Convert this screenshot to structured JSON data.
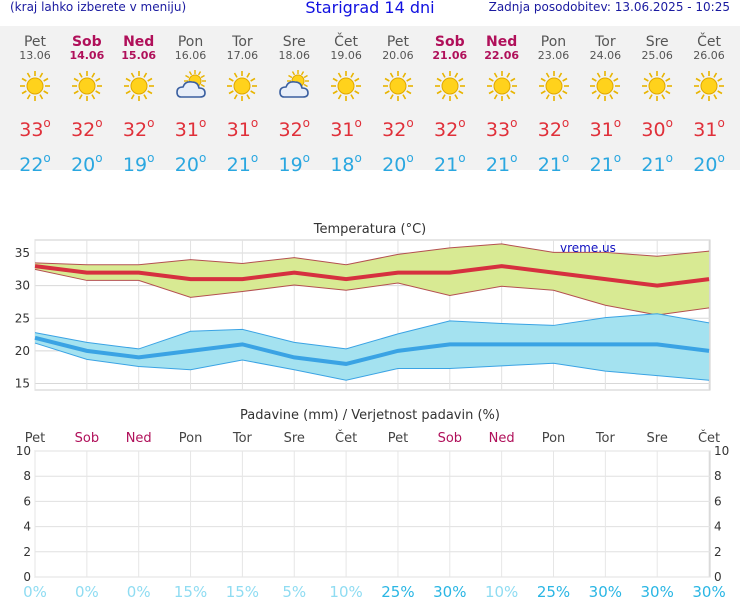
{
  "header": {
    "hint": "(kraj lahko izberete v meniju)",
    "title": "Starigrad 14 dni",
    "updated": "Zadnja posodobitev: 13.06.2025 - 10:25"
  },
  "days": [
    {
      "day": "Pet",
      "date": "13.06",
      "icon": "sun-icon",
      "max": "33",
      "min": "22",
      "weekend": false
    },
    {
      "day": "Sob",
      "date": "14.06",
      "icon": "sun-icon",
      "max": "32",
      "min": "20",
      "weekend": true
    },
    {
      "day": "Ned",
      "date": "15.06",
      "icon": "sun-icon",
      "max": "32",
      "min": "19",
      "weekend": true
    },
    {
      "day": "Pon",
      "date": "16.06",
      "icon": "partly-cloudy-icon",
      "max": "31",
      "min": "20",
      "weekend": false
    },
    {
      "day": "Tor",
      "date": "17.06",
      "icon": "sun-icon",
      "max": "31",
      "min": "21",
      "weekend": false
    },
    {
      "day": "Sre",
      "date": "18.06",
      "icon": "partly-cloudy-icon",
      "max": "32",
      "min": "19",
      "weekend": false
    },
    {
      "day": "Čet",
      "date": "19.06",
      "icon": "sun-icon",
      "max": "31",
      "min": "18",
      "weekend": false
    },
    {
      "day": "Pet",
      "date": "20.06",
      "icon": "sun-icon",
      "max": "32",
      "min": "20",
      "weekend": false
    },
    {
      "day": "Sob",
      "date": "21.06",
      "icon": "sun-icon",
      "max": "32",
      "min": "21",
      "weekend": true
    },
    {
      "day": "Ned",
      "date": "22.06",
      "icon": "sun-icon",
      "max": "33",
      "min": "21",
      "weekend": true
    },
    {
      "day": "Pon",
      "date": "23.06",
      "icon": "sun-icon",
      "max": "32",
      "min": "21",
      "weekend": false
    },
    {
      "day": "Tor",
      "date": "24.06",
      "icon": "sun-icon",
      "max": "31",
      "min": "21",
      "weekend": false
    },
    {
      "day": "Sre",
      "date": "25.06",
      "icon": "sun-icon",
      "max": "30",
      "min": "21",
      "weekend": false
    },
    {
      "day": "Čet",
      "date": "26.06",
      "icon": "sun-icon",
      "max": "31",
      "min": "20",
      "weekend": false
    }
  ],
  "colors": {
    "max_line": "#d6303f",
    "max_band": "#d8ea93",
    "max_band_edge": "#b45050",
    "min_line": "#3aa3e4",
    "min_band": "#a4e2f0",
    "min_band_edge": "#3aa3e4",
    "weekend": "#b0105a",
    "prob_low": "#8fdcf2",
    "prob_high": "#2ab6e4"
  },
  "chart_data": [
    {
      "type": "line",
      "title": "Temperatura (°C)",
      "watermark": "vreme.us",
      "categories": [
        "Pet",
        "Sob",
        "Ned",
        "Pon",
        "Tor",
        "Sre",
        "Čet",
        "Pet",
        "Sob",
        "Ned",
        "Pon",
        "Tor",
        "Sre",
        "Čet"
      ],
      "ylim": [
        14,
        37
      ],
      "yticks": [
        15,
        20,
        25,
        30,
        35
      ],
      "series": [
        {
          "name": "max",
          "values": [
            33,
            32,
            32,
            31,
            31,
            32,
            31,
            32,
            32,
            33,
            32,
            31,
            30,
            31
          ]
        },
        {
          "name": "max_upper",
          "values": [
            33.5,
            33.2,
            33.2,
            34,
            33.4,
            34.3,
            33.2,
            34.8,
            35.8,
            36.4,
            35.1,
            35.1,
            34.5,
            35.3
          ]
        },
        {
          "name": "max_lower",
          "values": [
            32.5,
            30.8,
            30.8,
            28.2,
            29.1,
            30.1,
            29.3,
            30.4,
            28.5,
            29.9,
            29.3,
            27,
            25.5,
            26.6
          ]
        },
        {
          "name": "min",
          "values": [
            22,
            20,
            19,
            20,
            21,
            19,
            18,
            20,
            21,
            21,
            21,
            21,
            21,
            20
          ]
        },
        {
          "name": "min_upper",
          "values": [
            22.8,
            21.3,
            20.3,
            23,
            23.3,
            21.3,
            20.3,
            22.6,
            24.6,
            24.2,
            23.9,
            25.1,
            25.7,
            24.3
          ]
        },
        {
          "name": "min_lower",
          "values": [
            21.2,
            18.7,
            17.6,
            17.1,
            18.6,
            17.1,
            15.5,
            17.3,
            17.3,
            17.7,
            18.1,
            16.9,
            16.2,
            15.5
          ]
        }
      ]
    },
    {
      "type": "bar",
      "title": "Padavine (mm) / Verjetnost padavin (%)",
      "categories": [
        "Pet",
        "Sob",
        "Ned",
        "Pon",
        "Tor",
        "Sre",
        "Čet",
        "Pet",
        "Sob",
        "Ned",
        "Pon",
        "Tor",
        "Sre",
        "Čet"
      ],
      "ylim": [
        0,
        10
      ],
      "yticks": [
        0,
        2,
        4,
        6,
        8,
        10
      ],
      "values": [
        0,
        0,
        0,
        0,
        0,
        0,
        0,
        0,
        0,
        0,
        0,
        0,
        0,
        0
      ],
      "probability": [
        "0%",
        "0%",
        "0%",
        "15%",
        "15%",
        "5%",
        "10%",
        "25%",
        "30%",
        "10%",
        "25%",
        "30%",
        "30%",
        "30%"
      ]
    }
  ]
}
